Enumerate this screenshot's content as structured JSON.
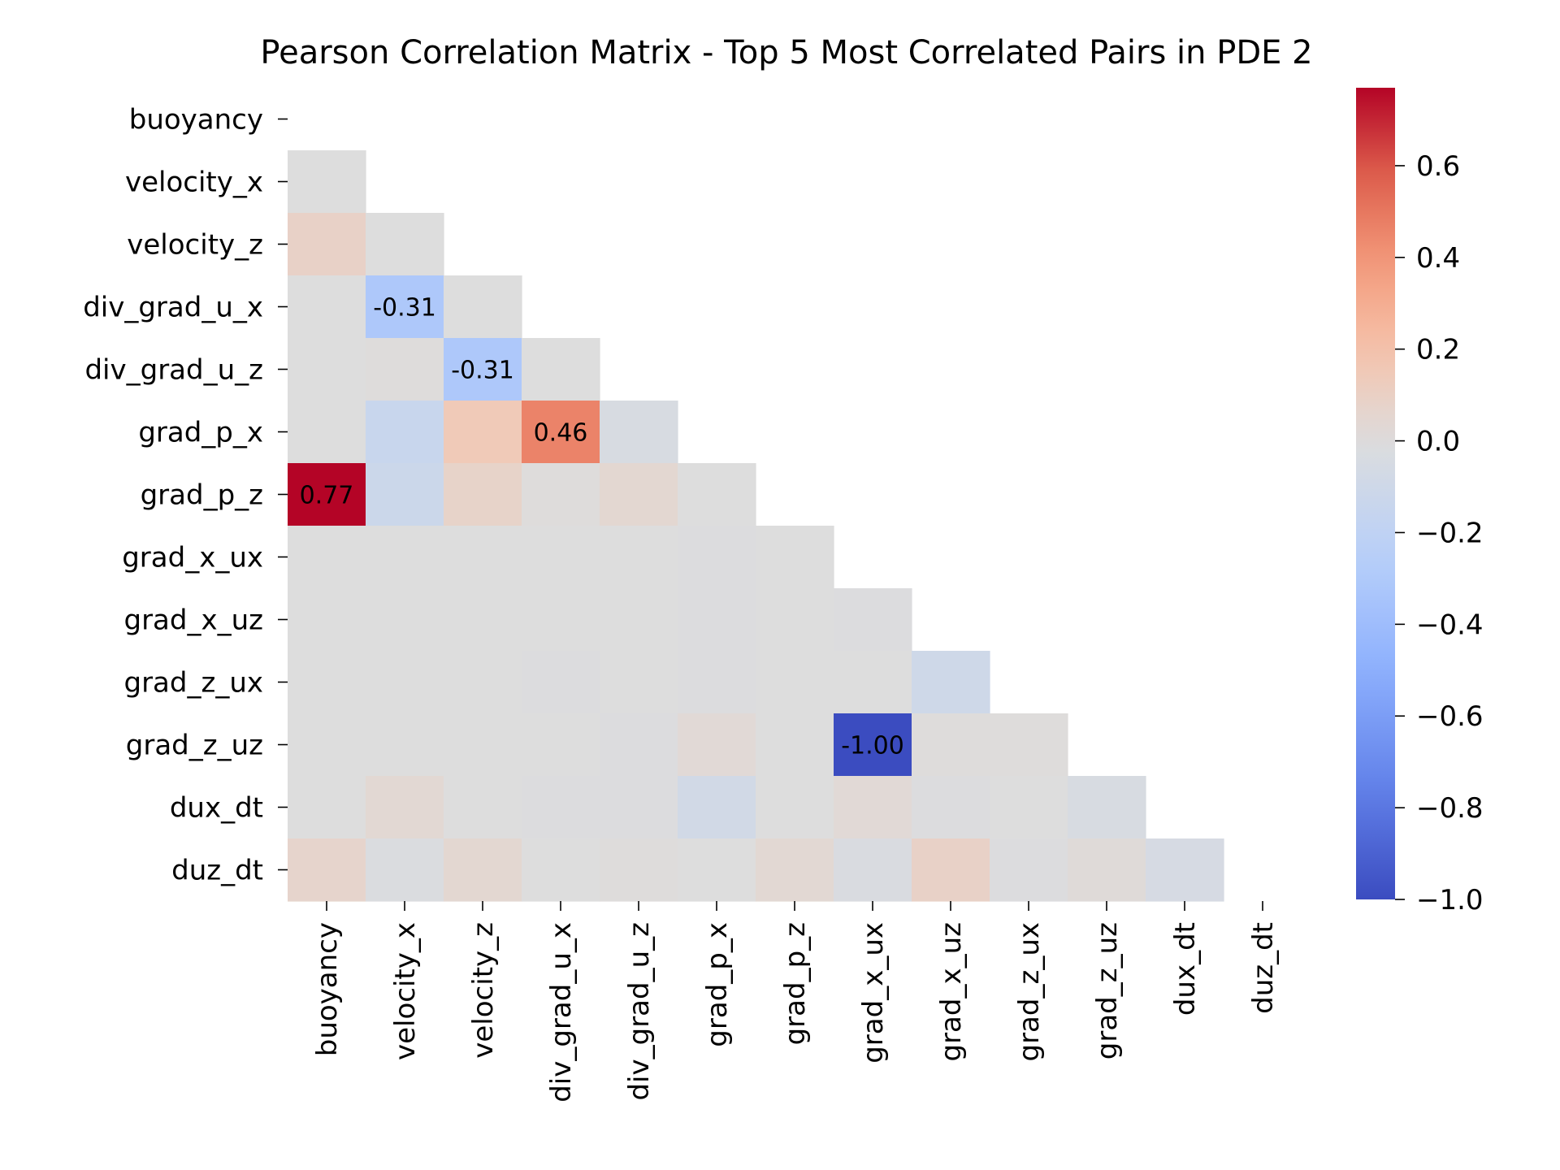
{
  "chart_data": {
    "type": "heatmap",
    "title": "Pearson Correlation Matrix - Top 5 Most Correlated Pairs in PDE 2",
    "variables": [
      "buoyancy",
      "velocity_x",
      "velocity_z",
      "div_grad_u_x",
      "div_grad_u_z",
      "grad_p_x",
      "grad_p_z",
      "grad_x_ux",
      "grad_x_uz",
      "grad_z_ux",
      "grad_z_uz",
      "dux_dt",
      "duz_dt"
    ],
    "mask": "upper-triangle-including-diagonal",
    "colormap": "coolwarm",
    "vmin": -1.0,
    "vmax": 0.77,
    "colorbar_ticks": [
      "0.6",
      "0.4",
      "0.2",
      "0.0",
      "−0.2",
      "−0.4",
      "−0.6",
      "−0.8",
      "−1.0"
    ],
    "colorbar_tick_values": [
      0.6,
      0.4,
      0.2,
      0.0,
      -0.2,
      -0.4,
      -0.6,
      -0.8,
      -1.0
    ],
    "matrix": [
      [],
      [
        0.0
      ],
      [
        0.09,
        0.0
      ],
      [
        0.0,
        -0.31,
        0.0
      ],
      [
        0.0,
        0.01,
        -0.31,
        0.0
      ],
      [
        0.0,
        -0.14,
        0.15,
        0.46,
        -0.04
      ],
      [
        0.77,
        -0.12,
        0.08,
        0.01,
        0.05,
        0.0
      ],
      [
        0.0,
        0.0,
        0.0,
        0.0,
        0.0,
        -0.01,
        0.0
      ],
      [
        0.0,
        0.0,
        0.0,
        0.0,
        0.0,
        -0.01,
        0.0,
        -0.01
      ],
      [
        0.0,
        0.0,
        0.0,
        -0.01,
        0.0,
        -0.01,
        0.0,
        0.0,
        -0.1
      ],
      [
        0.0,
        0.0,
        0.0,
        0.0,
        -0.01,
        0.03,
        0.0,
        -1.0,
        0.01,
        0.01
      ],
      [
        0.0,
        0.04,
        0.0,
        -0.01,
        -0.01,
        -0.08,
        0.0,
        0.03,
        -0.01,
        0.0,
        -0.04
      ],
      [
        0.07,
        -0.02,
        0.05,
        0.0,
        0.01,
        0.0,
        0.04,
        -0.03,
        0.09,
        -0.01,
        0.02,
        -0.05
      ]
    ],
    "annotations": [
      {
        "row": 3,
        "col": 1,
        "text": "-0.31"
      },
      {
        "row": 4,
        "col": 2,
        "text": "-0.31"
      },
      {
        "row": 5,
        "col": 3,
        "text": "0.46"
      },
      {
        "row": 6,
        "col": 0,
        "text": "0.77"
      },
      {
        "row": 10,
        "col": 7,
        "text": "-1.00"
      }
    ]
  }
}
